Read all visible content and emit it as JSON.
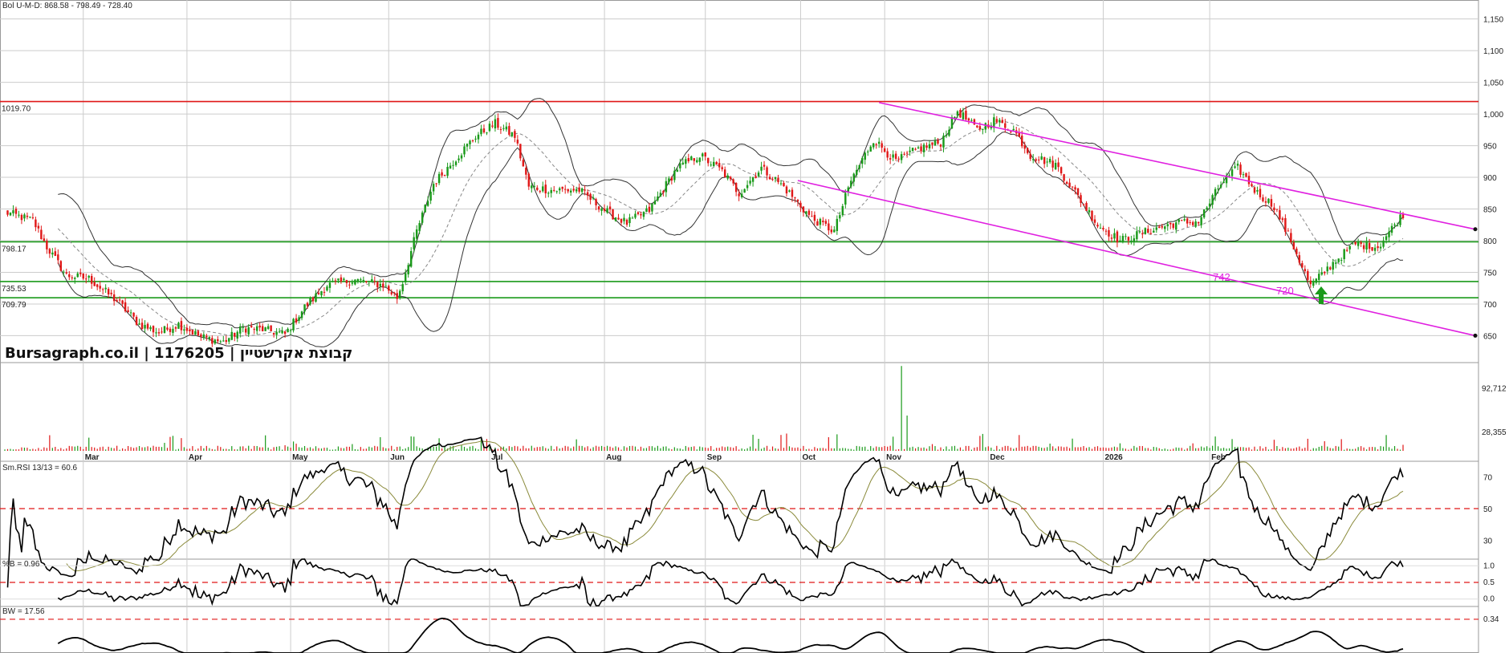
{
  "header": {
    "indicator_text": "Bol U-M-D: 868.58 - 798.49 - 728.40",
    "watermark": "Bursagraph.co.il | 1176205 | קבוצת אקרשטיין"
  },
  "colors": {
    "up": "#1a9a1a",
    "down": "#e01818",
    "resistance": "#e01818",
    "support": "#1a9a1a",
    "channel": "#e020e0",
    "band": "#333333",
    "rsi_signal": "#8a8a3a",
    "dashed_ref": "#e01818",
    "grid": "#cccccc"
  },
  "chart_data": [
    {
      "type": "candlestick",
      "panel": "price",
      "ylim": [
        610,
        1180
      ],
      "y_ticks": [
        "1,150",
        "1,100",
        "1,050",
        "1,000",
        "950",
        "900",
        "850",
        "800",
        "750",
        "700",
        "650"
      ],
      "y_tick_values": [
        1150,
        1100,
        1050,
        1000,
        950,
        900,
        850,
        800,
        750,
        700,
        650
      ],
      "x_labels": [
        "Mar",
        "Apr",
        "May",
        "Jun",
        "Jul",
        "Aug",
        "Sep",
        "Oct",
        "Nov",
        "Dec",
        "2026",
        "Feb"
      ],
      "horizontal_levels": [
        {
          "value": 1019.7,
          "label": "1019.70",
          "color": "resistance"
        },
        {
          "value": 798.17,
          "label": "798.17",
          "color": "support"
        },
        {
          "value": 735.53,
          "label": "735.53",
          "color": "support"
        },
        {
          "value": 709.79,
          "label": "709.79",
          "color": "support"
        }
      ],
      "annotations": [
        {
          "text": "742",
          "value": 742
        },
        {
          "text": "720",
          "value": 720
        }
      ],
      "channel": {
        "upper": {
          "from_value": 1018,
          "to_value": 818
        },
        "lower": {
          "from_value": 895,
          "to_value": 650
        }
      },
      "bands": {
        "upper_last": 868.58,
        "middle_last": 798.49,
        "lower_last": 728.4
      },
      "close_keypoints": [
        [
          0,
          845
        ],
        [
          10,
          832
        ],
        [
          15,
          790
        ],
        [
          22,
          745
        ],
        [
          30,
          740
        ],
        [
          40,
          705
        ],
        [
          48,
          668
        ],
        [
          55,
          655
        ],
        [
          62,
          668
        ],
        [
          70,
          648
        ],
        [
          78,
          640
        ],
        [
          85,
          662
        ],
        [
          92,
          660
        ],
        [
          100,
          652
        ],
        [
          107,
          695
        ],
        [
          115,
          730
        ],
        [
          125,
          738
        ],
        [
          135,
          730
        ],
        [
          140,
          710
        ],
        [
          142,
          735
        ],
        [
          147,
          815
        ],
        [
          153,
          890
        ],
        [
          160,
          925
        ],
        [
          168,
          965
        ],
        [
          175,
          985
        ],
        [
          182,
          965
        ],
        [
          187,
          885
        ],
        [
          195,
          880
        ],
        [
          205,
          880
        ],
        [
          215,
          845
        ],
        [
          222,
          828
        ],
        [
          230,
          848
        ],
        [
          240,
          915
        ],
        [
          248,
          935
        ],
        [
          256,
          910
        ],
        [
          262,
          875
        ],
        [
          270,
          915
        ],
        [
          278,
          885
        ],
        [
          288,
          835
        ],
        [
          296,
          815
        ],
        [
          302,
          895
        ],
        [
          310,
          960
        ],
        [
          318,
          925
        ],
        [
          326,
          945
        ],
        [
          334,
          955
        ],
        [
          340,
          1005
        ],
        [
          347,
          975
        ],
        [
          353,
          990
        ],
        [
          360,
          975
        ],
        [
          366,
          935
        ],
        [
          375,
          920
        ],
        [
          383,
          870
        ],
        [
          390,
          825
        ],
        [
          398,
          800
        ],
        [
          408,
          815
        ],
        [
          418,
          828
        ],
        [
          426,
          830
        ],
        [
          434,
          890
        ],
        [
          440,
          915
        ],
        [
          447,
          875
        ],
        [
          453,
          855
        ],
        [
          460,
          790
        ],
        [
          466,
          728
        ],
        [
          474,
          765
        ],
        [
          482,
          795
        ],
        [
          490,
          790
        ],
        [
          496,
          825
        ],
        [
          500,
          848
        ]
      ],
      "date_anchors": [
        {
          "label": "Mar",
          "index": 28
        },
        {
          "label": "Apr",
          "index": 65
        },
        {
          "label": "May",
          "index": 102
        },
        {
          "label": "Jun",
          "index": 137
        },
        {
          "label": "Jul",
          "index": 173
        },
        {
          "label": "Aug",
          "index": 214
        },
        {
          "label": "Sep",
          "index": 250
        },
        {
          "label": "Oct",
          "index": 284
        },
        {
          "label": "Nov",
          "index": 314
        },
        {
          "label": "Dec",
          "index": 351
        },
        {
          "label": "2026",
          "index": 392
        },
        {
          "label": "Feb",
          "index": 430
        }
      ],
      "n_bars": 500
    },
    {
      "type": "bar",
      "panel": "volume",
      "y_ticks": [
        "92,712",
        "28,355"
      ],
      "y_tick_values": [
        92712,
        28355
      ],
      "ylim": [
        0,
        130000
      ]
    },
    {
      "type": "line",
      "panel": "rsi",
      "title": "Sm.RSI 13/13 = 60.6",
      "ylim": [
        20,
        80
      ],
      "y_ticks": [
        "70",
        "50",
        "30"
      ],
      "y_tick_values": [
        70,
        50,
        30
      ],
      "reference_value": 50,
      "last_value": 60.6
    },
    {
      "type": "line",
      "panel": "percent_b",
      "title": "%B = 0.96",
      "ylim": [
        -0.2,
        1.2
      ],
      "y_ticks": [
        "1.0",
        "0.5",
        "0.0"
      ],
      "y_tick_values": [
        1.0,
        0.5,
        0.0
      ],
      "reference_value": 0.5,
      "last_value": 0.96
    },
    {
      "type": "line",
      "panel": "bandwidth",
      "title": "BW = 17.56",
      "ylim": [
        5,
        45
      ],
      "y_ticks": [
        "0.34"
      ],
      "y_tick_values": [
        34
      ],
      "reference_value": 34,
      "last_value": 17.56
    }
  ]
}
